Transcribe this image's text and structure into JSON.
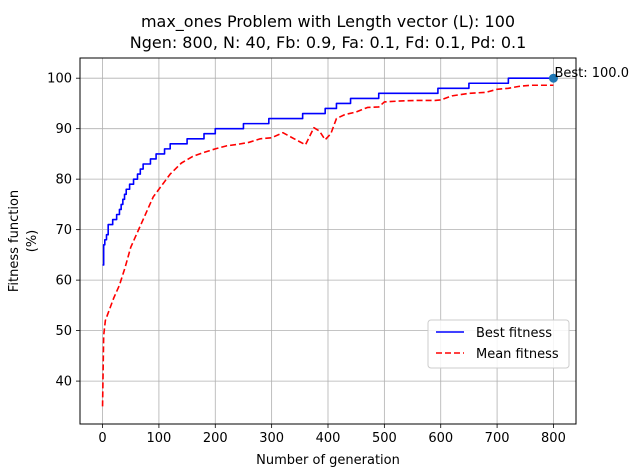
{
  "chart_data": {
    "type": "line",
    "title_line1": "max_ones Problem with Length vector (L): 100",
    "title_line2": "Ngen: 800, N: 40, Fb: 0.9, Fa: 0.1, Fd: 0.1, Pd: 0.1",
    "xlabel": "Number of generation",
    "ylabel_line1": "Fitness function",
    "ylabel_line2": "(%)",
    "xlim": [
      -40,
      840
    ],
    "ylim": [
      31.5,
      104
    ],
    "xticks": [
      0,
      100,
      200,
      300,
      400,
      500,
      600,
      700,
      800
    ],
    "yticks": [
      40,
      50,
      60,
      70,
      80,
      90,
      100
    ],
    "grid": true,
    "legend_position": "lower-right",
    "annotation": {
      "text": "Best: 100.0",
      "x": 800,
      "y": 100
    },
    "series": [
      {
        "name": "Best fitness",
        "color": "#0000ff",
        "style": "step",
        "x": [
          0,
          2,
          4,
          7,
          10,
          18,
          25,
          30,
          33,
          36,
          39,
          42,
          48,
          55,
          62,
          67,
          72,
          85,
          95,
          110,
          120,
          130,
          150,
          180,
          200,
          250,
          295,
          355,
          395,
          415,
          440,
          490,
          595,
          650,
          720,
          800
        ],
        "y": [
          63,
          67,
          68,
          69,
          71,
          72,
          73,
          74,
          75,
          76,
          77,
          78,
          79,
          80,
          81,
          82,
          83,
          84,
          85,
          86,
          87,
          87,
          88,
          89,
          90,
          91,
          92,
          93,
          94,
          95,
          96,
          97,
          98,
          99,
          100,
          100
        ]
      },
      {
        "name": "Mean fitness",
        "color": "#ff0000",
        "style": "dashed",
        "x": [
          0,
          2,
          5,
          10,
          20,
          30,
          40,
          50,
          60,
          70,
          80,
          90,
          100,
          120,
          140,
          160,
          180,
          200,
          220,
          240,
          260,
          280,
          300,
          320,
          340,
          360,
          375,
          385,
          395,
          405,
          415,
          430,
          450,
          470,
          490,
          500,
          530,
          560,
          590,
          600,
          620,
          650,
          680,
          700,
          720,
          740,
          760,
          780,
          800
        ],
        "y": [
          35,
          49,
          52,
          53.5,
          56.5,
          59,
          62.5,
          66.5,
          69,
          71.5,
          74,
          76.5,
          78,
          81,
          83.2,
          84.5,
          85.3,
          86,
          86.6,
          86.9,
          87.3,
          88,
          88.2,
          89.2,
          88,
          86.8,
          90.2,
          89.5,
          87.8,
          89,
          92,
          92.8,
          93.3,
          94.2,
          94.3,
          95.3,
          95.5,
          95.6,
          95.6,
          95.7,
          96.5,
          97,
          97.2,
          97.8,
          98,
          98.4,
          98.6,
          98.6,
          98.6
        ]
      }
    ]
  }
}
